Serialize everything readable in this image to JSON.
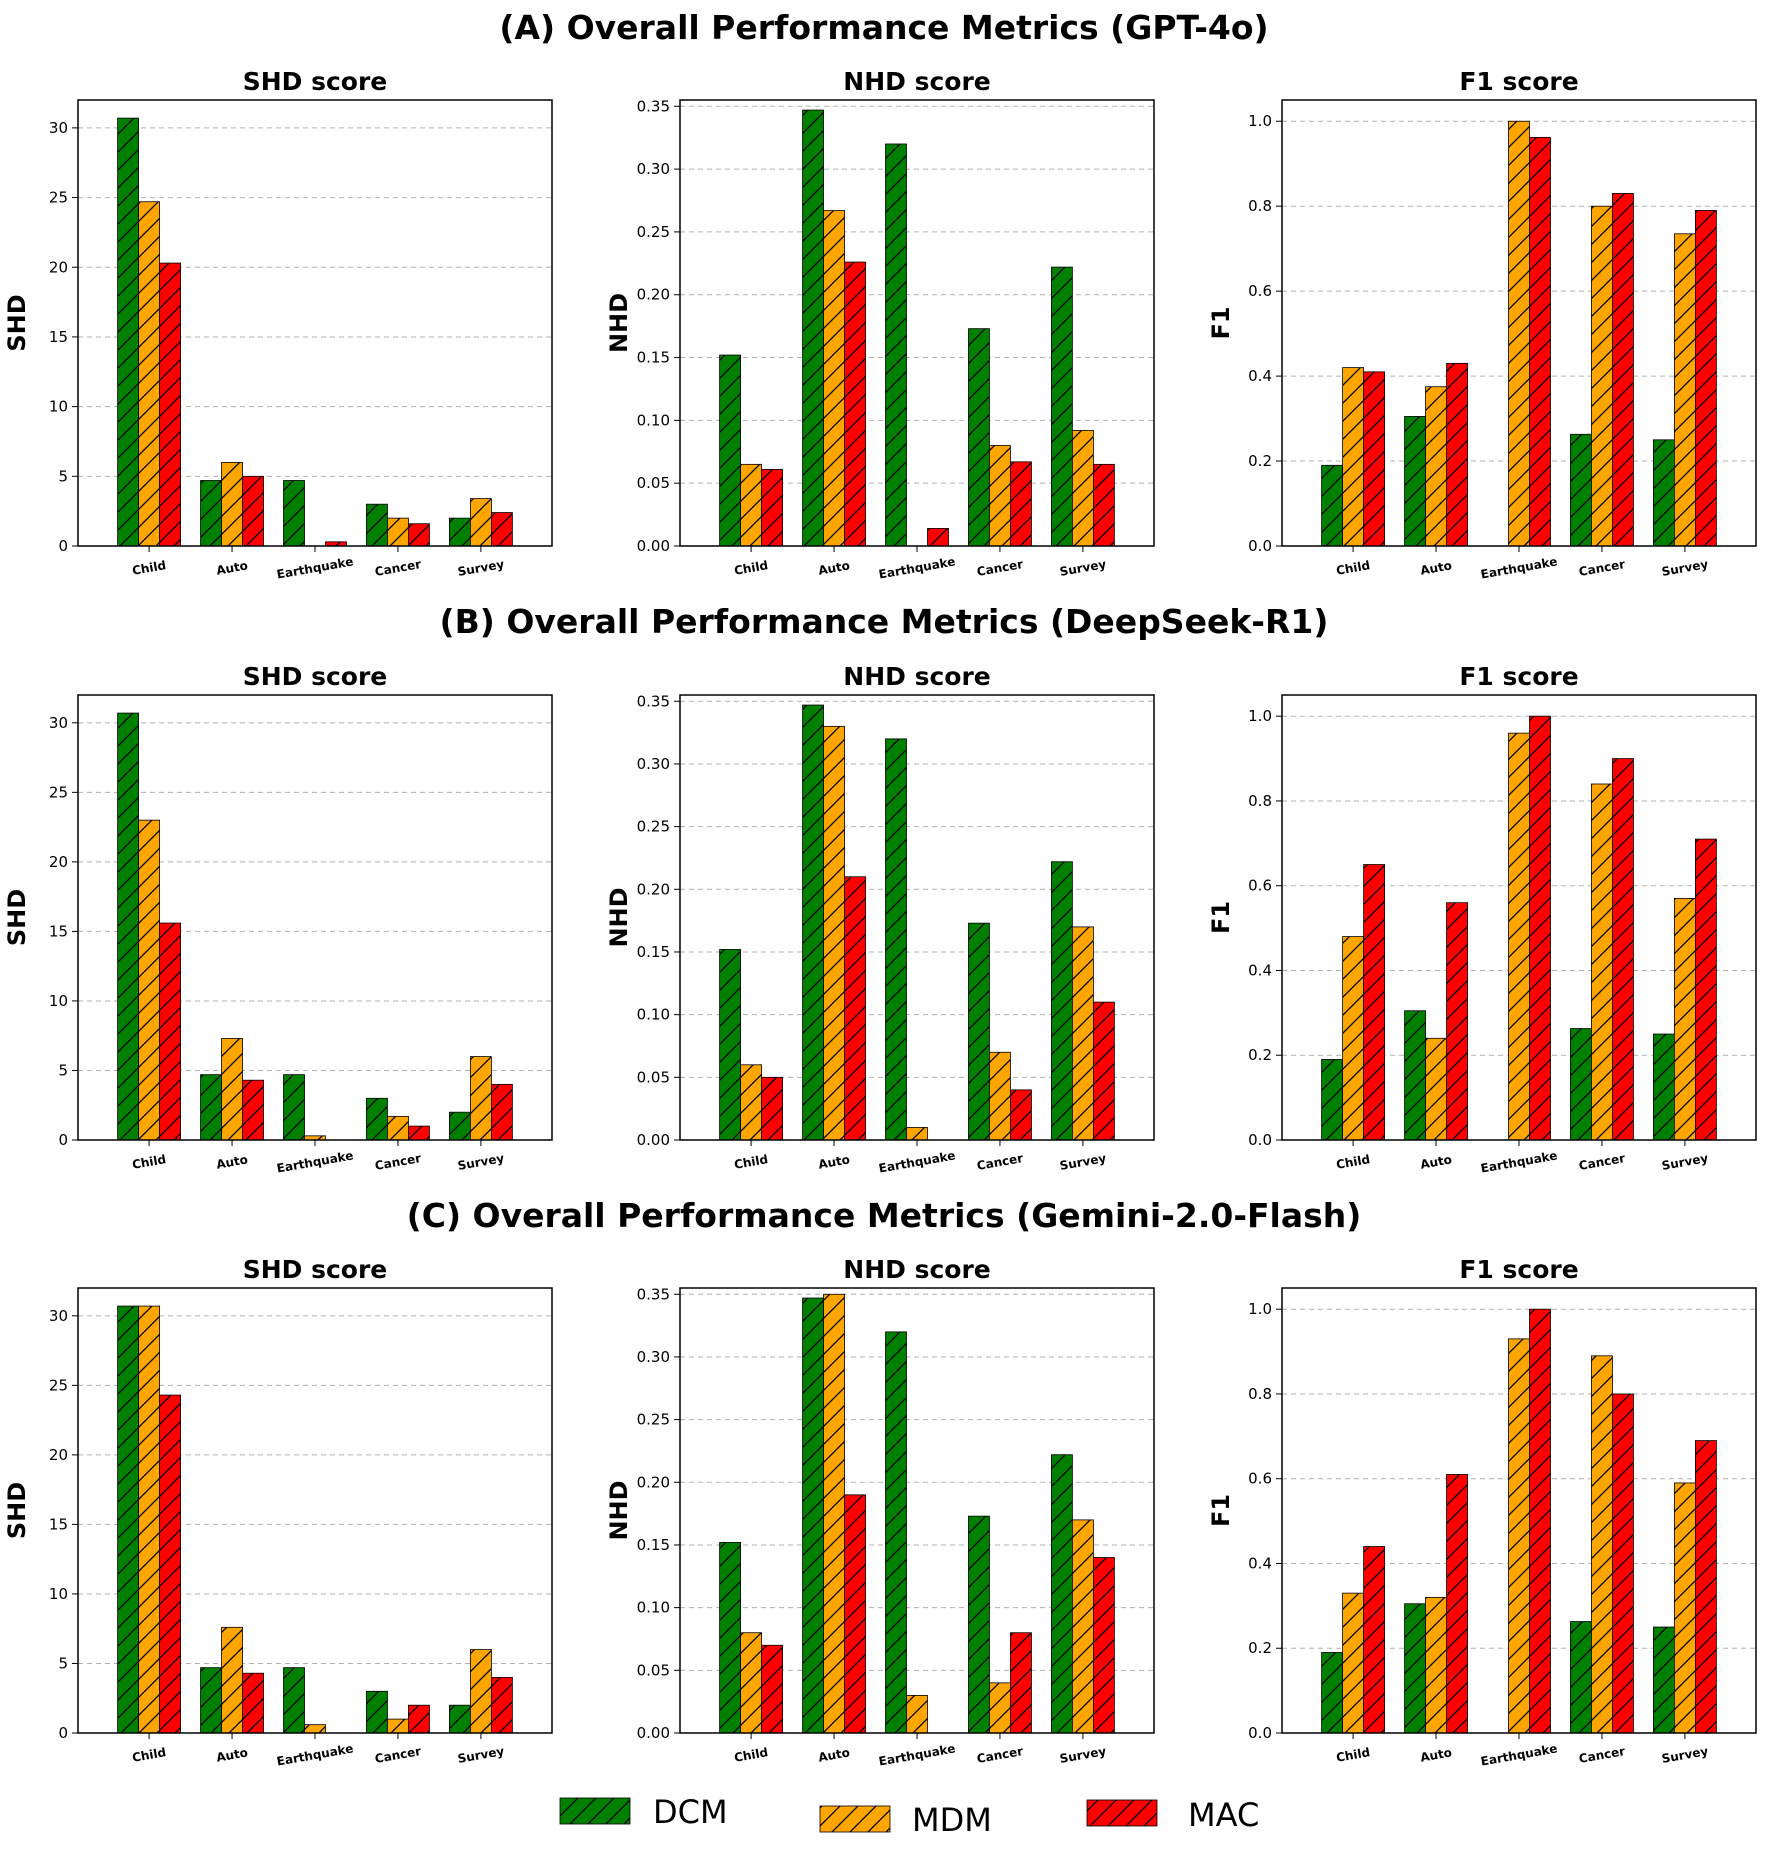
{
  "legend": [
    {
      "name": "DCM",
      "color": "#008000"
    },
    {
      "name": "MDM",
      "color": "#FFA500"
    },
    {
      "name": "MAC",
      "color": "#FF0000"
    }
  ],
  "chart_data": [
    {
      "section_title": "(A) Overall Performance Metrics (GPT-4o)",
      "panels": [
        {
          "type": "bar",
          "title": "SHD score",
          "ylabel": "SHD",
          "ylim": [
            0,
            32
          ],
          "yticks": [
            0,
            5,
            10,
            15,
            20,
            25,
            30
          ],
          "tick_decimals": 0,
          "categories": [
            "Child",
            "Auto",
            "Earthquake",
            "Cancer",
            "Survey"
          ],
          "series": [
            {
              "name": "DCM",
              "values": [
                30.7,
                4.7,
                4.7,
                3.0,
                2.0
              ]
            },
            {
              "name": "MDM",
              "values": [
                24.7,
                6.0,
                0.0,
                2.0,
                3.4
              ]
            },
            {
              "name": "MAC",
              "values": [
                20.3,
                5.0,
                0.3,
                1.6,
                2.4
              ]
            }
          ]
        },
        {
          "type": "bar",
          "title": "NHD score",
          "ylabel": "NHD",
          "ylim": [
            0,
            0.355
          ],
          "yticks": [
            0,
            0.05,
            0.1,
            0.15,
            0.2,
            0.25,
            0.3,
            0.35
          ],
          "tick_decimals": 2,
          "categories": [
            "Child",
            "Auto",
            "Earthquake",
            "Cancer",
            "Survey"
          ],
          "series": [
            {
              "name": "DCM",
              "values": [
                0.152,
                0.347,
                0.32,
                0.173,
                0.222
              ]
            },
            {
              "name": "MDM",
              "values": [
                0.065,
                0.267,
                0.0,
                0.08,
                0.092
              ]
            },
            {
              "name": "MAC",
              "values": [
                0.061,
                0.226,
                0.014,
                0.067,
                0.065
              ]
            }
          ]
        },
        {
          "type": "bar",
          "title": "F1 score",
          "ylabel": "F1",
          "ylim": [
            0,
            1.05
          ],
          "yticks": [
            0,
            0.2,
            0.4,
            0.6,
            0.8,
            1.0
          ],
          "tick_decimals": 1,
          "categories": [
            "Child",
            "Auto",
            "Earthquake",
            "Cancer",
            "Survey"
          ],
          "series": [
            {
              "name": "DCM",
              "values": [
                0.19,
                0.305,
                0.0,
                0.263,
                0.25
              ]
            },
            {
              "name": "MDM",
              "values": [
                0.42,
                0.375,
                1.0,
                0.8,
                0.735
              ]
            },
            {
              "name": "MAC",
              "values": [
                0.41,
                0.43,
                0.962,
                0.83,
                0.79
              ]
            }
          ]
        }
      ]
    },
    {
      "section_title": "(B) Overall Performance Metrics (DeepSeek-R1)",
      "panels": [
        {
          "type": "bar",
          "title": "SHD score",
          "ylabel": "SHD",
          "ylim": [
            0,
            32
          ],
          "yticks": [
            0,
            5,
            10,
            15,
            20,
            25,
            30
          ],
          "tick_decimals": 0,
          "categories": [
            "Child",
            "Auto",
            "Earthquake",
            "Cancer",
            "Survey"
          ],
          "series": [
            {
              "name": "DCM",
              "values": [
                30.7,
                4.7,
                4.7,
                3.0,
                2.0
              ]
            },
            {
              "name": "MDM",
              "values": [
                23.0,
                7.3,
                0.3,
                1.7,
                6.0
              ]
            },
            {
              "name": "MAC",
              "values": [
                15.6,
                4.3,
                0.0,
                1.0,
                4.0
              ]
            }
          ]
        },
        {
          "type": "bar",
          "title": "NHD score",
          "ylabel": "NHD",
          "ylim": [
            0,
            0.355
          ],
          "yticks": [
            0,
            0.05,
            0.1,
            0.15,
            0.2,
            0.25,
            0.3,
            0.35
          ],
          "tick_decimals": 2,
          "categories": [
            "Child",
            "Auto",
            "Earthquake",
            "Cancer",
            "Survey"
          ],
          "series": [
            {
              "name": "DCM",
              "values": [
                0.152,
                0.347,
                0.32,
                0.173,
                0.222
              ]
            },
            {
              "name": "MDM",
              "values": [
                0.06,
                0.33,
                0.01,
                0.07,
                0.17
              ]
            },
            {
              "name": "MAC",
              "values": [
                0.05,
                0.21,
                0.0,
                0.04,
                0.11
              ]
            }
          ]
        },
        {
          "type": "bar",
          "title": "F1 score",
          "ylabel": "F1",
          "ylim": [
            0,
            1.05
          ],
          "yticks": [
            0,
            0.2,
            0.4,
            0.6,
            0.8,
            1.0
          ],
          "tick_decimals": 1,
          "categories": [
            "Child",
            "Auto",
            "Earthquake",
            "Cancer",
            "Survey"
          ],
          "series": [
            {
              "name": "DCM",
              "values": [
                0.19,
                0.305,
                0.0,
                0.263,
                0.25
              ]
            },
            {
              "name": "MDM",
              "values": [
                0.48,
                0.24,
                0.96,
                0.84,
                0.57
              ]
            },
            {
              "name": "MAC",
              "values": [
                0.65,
                0.56,
                1.0,
                0.9,
                0.71
              ]
            }
          ]
        }
      ]
    },
    {
      "section_title": "(C) Overall Performance Metrics (Gemini-2.0-Flash)",
      "panels": [
        {
          "type": "bar",
          "title": "SHD score",
          "ylabel": "SHD",
          "ylim": [
            0,
            32
          ],
          "yticks": [
            0,
            5,
            10,
            15,
            20,
            25,
            30
          ],
          "tick_decimals": 0,
          "categories": [
            "Child",
            "Auto",
            "Earthquake",
            "Cancer",
            "Survey"
          ],
          "series": [
            {
              "name": "DCM",
              "values": [
                30.7,
                4.7,
                4.7,
                3.0,
                2.0
              ]
            },
            {
              "name": "MDM",
              "values": [
                30.7,
                7.6,
                0.6,
                1.0,
                6.0
              ]
            },
            {
              "name": "MAC",
              "values": [
                24.3,
                4.3,
                0.0,
                2.0,
                4.0
              ]
            }
          ]
        },
        {
          "type": "bar",
          "title": "NHD score",
          "ylabel": "NHD",
          "ylim": [
            0,
            0.355
          ],
          "yticks": [
            0,
            0.05,
            0.1,
            0.15,
            0.2,
            0.25,
            0.3,
            0.35
          ],
          "tick_decimals": 2,
          "categories": [
            "Child",
            "Auto",
            "Earthquake",
            "Cancer",
            "Survey"
          ],
          "series": [
            {
              "name": "DCM",
              "values": [
                0.152,
                0.347,
                0.32,
                0.173,
                0.222
              ]
            },
            {
              "name": "MDM",
              "values": [
                0.08,
                0.35,
                0.03,
                0.04,
                0.17
              ]
            },
            {
              "name": "MAC",
              "values": [
                0.07,
                0.19,
                0.0,
                0.08,
                0.14
              ]
            }
          ]
        },
        {
          "type": "bar",
          "title": "F1 score",
          "ylabel": "F1",
          "ylim": [
            0,
            1.05
          ],
          "yticks": [
            0,
            0.2,
            0.4,
            0.6,
            0.8,
            1.0
          ],
          "tick_decimals": 1,
          "categories": [
            "Child",
            "Auto",
            "Earthquake",
            "Cancer",
            "Survey"
          ],
          "series": [
            {
              "name": "DCM",
              "values": [
                0.19,
                0.305,
                0.0,
                0.263,
                0.25
              ]
            },
            {
              "name": "MDM",
              "values": [
                0.33,
                0.32,
                0.93,
                0.89,
                0.59
              ]
            },
            {
              "name": "MAC",
              "values": [
                0.44,
                0.61,
                1.0,
                0.8,
                0.69
              ]
            }
          ]
        }
      ]
    }
  ]
}
